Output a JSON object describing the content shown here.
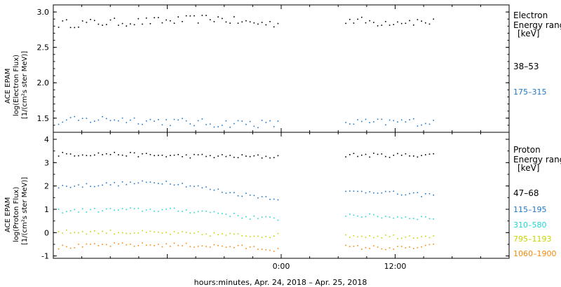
{
  "figure": {
    "xlabel": "hours:minutes, Apr. 24, 2018 – Apr. 25, 2018",
    "x_ticks": [
      "0:00",
      "12:00"
    ]
  },
  "panels": [
    {
      "ylabel_lines": [
        "ACE EPAM",
        "log(Electron Flux)",
        "[1/(cm²s ster MeV)]"
      ],
      "y_ticks": [
        "1.5",
        "2.0",
        "2.5",
        "3.0"
      ],
      "legend_title_lines": [
        "Electron",
        "Energy ranges",
        "[keV]"
      ]
    },
    {
      "ylabel_lines": [
        "ACE EPAM",
        "log(Proton Flux)",
        "[1/(cm²s ster MeV)]"
      ],
      "y_ticks": [
        "-1",
        "0",
        "1",
        "2",
        "3",
        "4"
      ],
      "legend_title_lines": [
        "Proton",
        "Energy ranges",
        "[keV]"
      ]
    }
  ],
  "chart_data": [
    {
      "type": "scatter",
      "title": "",
      "xlabel": "hours:minutes, Apr. 24, 2018 – Apr. 25, 2018",
      "ylabel": "ACE EPAM log(Electron Flux) [1/(cm²s ster MeV)]",
      "x_unit": "hours relative to Apr. 25, 2018 00:00",
      "xlim": [
        -24,
        24
      ],
      "ylim": [
        1.3,
        3.1
      ],
      "log_scale": false,
      "grid": false,
      "legend_position": "right",
      "data_gap": [
        -0.3,
        6.7
      ],
      "series": [
        {
          "name": "38–53",
          "color": "#000000",
          "segments": [
            [
              -23.5,
              2.84
            ],
            [
              -18,
              2.86
            ],
            [
              -12,
              2.88
            ],
            [
              -7,
              2.92
            ],
            [
              -4,
              2.86
            ],
            [
              -0.5,
              2.84
            ],
            [
              6.8,
              2.9
            ],
            [
              10,
              2.86
            ],
            [
              13,
              2.88
            ],
            [
              16,
              2.86
            ]
          ]
        },
        {
          "name": "175–315",
          "color": "#1f77c8",
          "segments": [
            [
              -23.5,
              1.46
            ],
            [
              -18,
              1.5
            ],
            [
              -12,
              1.46
            ],
            [
              -7,
              1.43
            ],
            [
              -4,
              1.44
            ],
            [
              -0.5,
              1.42
            ],
            [
              6.8,
              1.45
            ],
            [
              10,
              1.44
            ],
            [
              13,
              1.46
            ],
            [
              16,
              1.45
            ]
          ]
        }
      ]
    },
    {
      "type": "scatter",
      "title": "",
      "xlabel": "hours:minutes, Apr. 24, 2018 – Apr. 25, 2018",
      "ylabel": "ACE EPAM log(Proton Flux) [1/(cm²s ster MeV)]",
      "x_unit": "hours relative to Apr. 25, 2018 00:00",
      "xlim": [
        -24,
        24
      ],
      "ylim": [
        -1.1,
        4.3
      ],
      "log_scale": false,
      "grid": false,
      "legend_position": "right",
      "data_gap": [
        -0.3,
        6.7
      ],
      "series": [
        {
          "name": "47–68",
          "color": "#000000",
          "segments": [
            [
              -23.5,
              3.38
            ],
            [
              -18,
              3.4
            ],
            [
              -12,
              3.32
            ],
            [
              -7,
              3.3
            ],
            [
              -4,
              3.28
            ],
            [
              -0.5,
              3.28
            ],
            [
              6.8,
              3.35
            ],
            [
              10,
              3.34
            ],
            [
              13,
              3.34
            ],
            [
              16,
              3.36
            ]
          ]
        },
        {
          "name": "115–195",
          "color": "#1f77c8",
          "segments": [
            [
              -23.5,
              2.0
            ],
            [
              -18,
              2.1
            ],
            [
              -12,
              2.2
            ],
            [
              -9,
              2.0
            ],
            [
              -5,
              1.7
            ],
            [
              -0.5,
              1.5
            ],
            [
              6.8,
              1.75
            ],
            [
              10,
              1.8
            ],
            [
              13,
              1.65
            ],
            [
              16,
              1.65
            ]
          ]
        },
        {
          "name": "310–580",
          "color": "#22d4d4",
          "segments": [
            [
              -23.5,
              0.95
            ],
            [
              -18,
              1.0
            ],
            [
              -12,
              1.0
            ],
            [
              -7,
              0.9
            ],
            [
              -4,
              0.7
            ],
            [
              -0.5,
              0.6
            ],
            [
              6.8,
              0.8
            ],
            [
              10,
              0.72
            ],
            [
              13,
              0.68
            ],
            [
              16,
              0.66
            ]
          ]
        },
        {
          "name": "795–1193",
          "color": "#c8d400",
          "segments": [
            [
              -23.5,
              0.05
            ],
            [
              -18,
              0.05
            ],
            [
              -12,
              0.0
            ],
            [
              -7,
              -0.05
            ],
            [
              -4,
              -0.1
            ],
            [
              -0.5,
              -0.1
            ],
            [
              6.8,
              -0.1
            ],
            [
              10,
              -0.12
            ],
            [
              13,
              -0.15
            ],
            [
              16,
              -0.1
            ]
          ]
        },
        {
          "name": "1060–1900",
          "color": "#f58a0a",
          "segments": [
            [
              -23.5,
              -0.6
            ],
            [
              -18,
              -0.5
            ],
            [
              -12,
              -0.5
            ],
            [
              -7,
              -0.55
            ],
            [
              -4,
              -0.6
            ],
            [
              -0.5,
              -0.7
            ],
            [
              6.8,
              -0.6
            ],
            [
              10,
              -0.62
            ],
            [
              13,
              -0.65
            ],
            [
              16,
              -0.55
            ]
          ]
        }
      ]
    }
  ]
}
